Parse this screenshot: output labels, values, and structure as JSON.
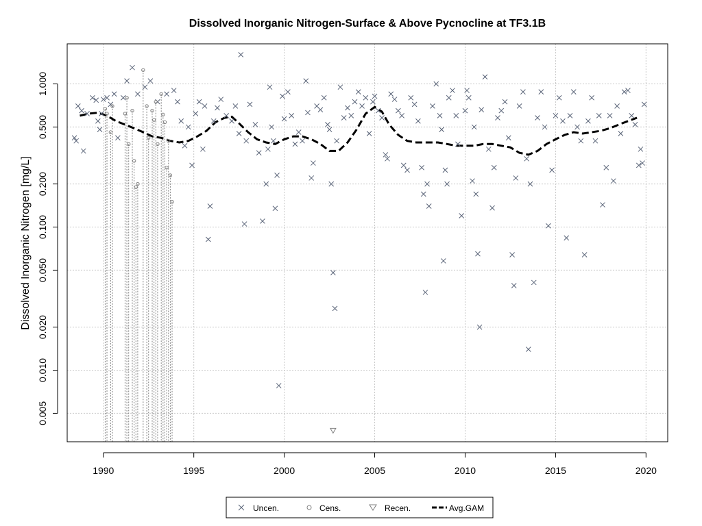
{
  "chart_data": {
    "type": "scatter",
    "title": "Dissolved Inorganic Nitrogen-Surface & Above Pycnocline at TF3.1B",
    "xlabel": "",
    "ylabel": "Dissolved Inorganic Nitrogen [mg/L]",
    "xlim": [
      1988,
      2021.2
    ],
    "ylim_log10": [
      -2.5,
      0.28
    ],
    "xticks": [
      1990,
      1995,
      2000,
      2005,
      2010,
      2015,
      2020
    ],
    "yticks": [
      0.005,
      0.01,
      0.02,
      0.05,
      0.1,
      0.2,
      0.5,
      1.0
    ],
    "ytick_labels": [
      "0.005",
      "0.010",
      "0.020",
      "0.050",
      "0.100",
      "0.200",
      "0.500",
      "1.000"
    ],
    "grid": true,
    "legend": {
      "position": "bottom-center",
      "entries": [
        {
          "label": "Uncen.",
          "symbol": "x"
        },
        {
          "label": "Cens.",
          "symbol": "o"
        },
        {
          "label": "Recen.",
          "symbol": "triangle-down"
        },
        {
          "label": "Avg.GAM",
          "symbol": "dashed-line"
        }
      ]
    },
    "series": [
      {
        "name": "Uncen.",
        "marker": "x",
        "points": [
          [
            1988.4,
            0.42
          ],
          [
            1988.5,
            0.4
          ],
          [
            1988.6,
            0.7
          ],
          [
            1988.8,
            0.65
          ],
          [
            1988.9,
            0.34
          ],
          [
            1989.1,
            0.62
          ],
          [
            1989.4,
            0.8
          ],
          [
            1989.6,
            0.77
          ],
          [
            1989.7,
            0.55
          ],
          [
            1989.8,
            0.48
          ],
          [
            1989.9,
            0.62
          ],
          [
            1990.0,
            0.78
          ],
          [
            1990.2,
            0.8
          ],
          [
            1990.4,
            0.72
          ],
          [
            1990.6,
            0.85
          ],
          [
            1990.8,
            0.42
          ],
          [
            1991.1,
            0.8
          ],
          [
            1991.3,
            1.05
          ],
          [
            1991.6,
            1.3
          ],
          [
            1991.9,
            0.85
          ],
          [
            1992.3,
            0.95
          ],
          [
            1992.6,
            1.05
          ],
          [
            1993.0,
            0.75
          ],
          [
            1993.5,
            0.85
          ],
          [
            1993.9,
            0.9
          ],
          [
            1994.1,
            0.75
          ],
          [
            1994.3,
            0.55
          ],
          [
            1994.5,
            0.37
          ],
          [
            1994.7,
            0.5
          ],
          [
            1994.9,
            0.27
          ],
          [
            1995.1,
            0.62
          ],
          [
            1995.3,
            0.75
          ],
          [
            1995.5,
            0.35
          ],
          [
            1995.6,
            0.7
          ],
          [
            1995.8,
            0.082
          ],
          [
            1995.9,
            0.14
          ],
          [
            1996.1,
            0.55
          ],
          [
            1996.3,
            0.68
          ],
          [
            1996.5,
            0.78
          ],
          [
            1996.8,
            0.6
          ],
          [
            1997.1,
            0.55
          ],
          [
            1997.3,
            0.7
          ],
          [
            1997.5,
            0.45
          ],
          [
            1997.6,
            1.6
          ],
          [
            1997.8,
            0.105
          ],
          [
            1997.9,
            0.4
          ],
          [
            1998.1,
            0.72
          ],
          [
            1998.4,
            0.52
          ],
          [
            1998.6,
            0.33
          ],
          [
            1998.8,
            0.11
          ],
          [
            1999.0,
            0.2
          ],
          [
            1999.1,
            0.35
          ],
          [
            1999.2,
            0.95
          ],
          [
            1999.3,
            0.5
          ],
          [
            1999.4,
            0.4
          ],
          [
            1999.5,
            0.135
          ],
          [
            1999.6,
            0.23
          ],
          [
            1999.7,
            0.0078
          ],
          [
            1999.9,
            0.82
          ],
          [
            2000.0,
            0.57
          ],
          [
            2000.2,
            0.88
          ],
          [
            2000.4,
            0.6
          ],
          [
            2000.6,
            0.38
          ],
          [
            2000.8,
            0.46
          ],
          [
            2001.0,
            0.4
          ],
          [
            2001.2,
            1.05
          ],
          [
            2001.3,
            0.63
          ],
          [
            2001.5,
            0.22
          ],
          [
            2001.6,
            0.28
          ],
          [
            2001.8,
            0.7
          ],
          [
            2002.0,
            0.66
          ],
          [
            2002.2,
            0.8
          ],
          [
            2002.4,
            0.52
          ],
          [
            2002.5,
            0.48
          ],
          [
            2002.6,
            0.2
          ],
          [
            2002.7,
            0.048
          ],
          [
            2002.8,
            0.027
          ],
          [
            2002.9,
            0.4
          ],
          [
            2003.1,
            0.95
          ],
          [
            2003.3,
            0.58
          ],
          [
            2003.5,
            0.68
          ],
          [
            2003.7,
            0.6
          ],
          [
            2003.9,
            0.75
          ],
          [
            2004.1,
            0.88
          ],
          [
            2004.3,
            0.7
          ],
          [
            2004.5,
            0.8
          ],
          [
            2004.7,
            0.45
          ],
          [
            2004.9,
            0.75
          ],
          [
            2005.0,
            0.82
          ],
          [
            2005.2,
            0.65
          ],
          [
            2005.4,
            0.58
          ],
          [
            2005.6,
            0.32
          ],
          [
            2005.7,
            0.3
          ],
          [
            2005.9,
            0.85
          ],
          [
            2006.1,
            0.78
          ],
          [
            2006.3,
            0.65
          ],
          [
            2006.5,
            0.6
          ],
          [
            2006.6,
            0.27
          ],
          [
            2006.8,
            0.25
          ],
          [
            2007.0,
            0.8
          ],
          [
            2007.2,
            0.72
          ],
          [
            2007.4,
            0.55
          ],
          [
            2007.6,
            0.26
          ],
          [
            2007.7,
            0.17
          ],
          [
            2007.8,
            0.035
          ],
          [
            2007.9,
            0.2
          ],
          [
            2008.0,
            0.14
          ],
          [
            2008.2,
            0.7
          ],
          [
            2008.4,
            1.0
          ],
          [
            2008.6,
            0.6
          ],
          [
            2008.7,
            0.48
          ],
          [
            2008.8,
            0.058
          ],
          [
            2008.9,
            0.25
          ],
          [
            2009.0,
            0.2
          ],
          [
            2009.1,
            0.8
          ],
          [
            2009.3,
            0.9
          ],
          [
            2009.5,
            0.6
          ],
          [
            2009.6,
            0.38
          ],
          [
            2009.8,
            0.12
          ],
          [
            2010.0,
            0.65
          ],
          [
            2010.1,
            0.9
          ],
          [
            2010.2,
            0.8
          ],
          [
            2010.4,
            0.21
          ],
          [
            2010.5,
            0.5
          ],
          [
            2010.6,
            0.17
          ],
          [
            2010.7,
            0.065
          ],
          [
            2010.8,
            0.02
          ],
          [
            2010.9,
            0.66
          ],
          [
            2011.1,
            1.12
          ],
          [
            2011.3,
            0.35
          ],
          [
            2011.5,
            0.136
          ],
          [
            2011.6,
            0.26
          ],
          [
            2011.8,
            0.58
          ],
          [
            2012.0,
            0.65
          ],
          [
            2012.2,
            0.75
          ],
          [
            2012.4,
            0.42
          ],
          [
            2012.6,
            0.064
          ],
          [
            2012.7,
            0.039
          ],
          [
            2012.8,
            0.22
          ],
          [
            2013.0,
            0.7
          ],
          [
            2013.2,
            0.88
          ],
          [
            2013.4,
            0.3
          ],
          [
            2013.5,
            0.014
          ],
          [
            2013.6,
            0.2
          ],
          [
            2013.8,
            0.041
          ],
          [
            2014.0,
            0.58
          ],
          [
            2014.2,
            0.88
          ],
          [
            2014.4,
            0.5
          ],
          [
            2014.6,
            0.102
          ],
          [
            2014.8,
            0.25
          ],
          [
            2015.0,
            0.6
          ],
          [
            2015.2,
            0.8
          ],
          [
            2015.4,
            0.55
          ],
          [
            2015.6,
            0.084
          ],
          [
            2015.8,
            0.6
          ],
          [
            2016.0,
            0.88
          ],
          [
            2016.2,
            0.5
          ],
          [
            2016.4,
            0.4
          ],
          [
            2016.6,
            0.064
          ],
          [
            2016.8,
            0.55
          ],
          [
            2017.0,
            0.8
          ],
          [
            2017.2,
            0.4
          ],
          [
            2017.4,
            0.6
          ],
          [
            2017.6,
            0.143
          ],
          [
            2017.8,
            0.26
          ],
          [
            2018.0,
            0.6
          ],
          [
            2018.2,
            0.21
          ],
          [
            2018.4,
            0.7
          ],
          [
            2018.6,
            0.45
          ],
          [
            2018.8,
            0.88
          ],
          [
            2019.0,
            0.9
          ],
          [
            2019.2,
            0.6
          ],
          [
            2019.4,
            0.52
          ],
          [
            2019.6,
            0.27
          ],
          [
            2019.7,
            0.35
          ],
          [
            2019.8,
            0.28
          ],
          [
            2019.9,
            0.72
          ]
        ]
      },
      {
        "name": "Cens.",
        "marker": "o",
        "points": [
          [
            1990.1,
            0.67
          ],
          [
            1990.2,
            0.62
          ],
          [
            1990.4,
            0.46
          ],
          [
            1990.5,
            0.7
          ],
          [
            1991.2,
            0.62
          ],
          [
            1991.3,
            0.8
          ],
          [
            1991.4,
            0.38
          ],
          [
            1991.6,
            0.65
          ],
          [
            1991.7,
            0.29
          ],
          [
            1991.8,
            0.19
          ],
          [
            1991.9,
            0.2
          ],
          [
            1992.2,
            1.25
          ],
          [
            1992.4,
            0.7
          ],
          [
            1992.5,
            0.42
          ],
          [
            1992.7,
            0.65
          ],
          [
            1992.8,
            0.56
          ],
          [
            1992.9,
            0.75
          ],
          [
            1993.0,
            0.38
          ],
          [
            1993.2,
            0.85
          ],
          [
            1993.3,
            0.61
          ],
          [
            1993.4,
            0.54
          ],
          [
            1993.5,
            0.26
          ],
          [
            1993.6,
            0.4
          ],
          [
            1993.7,
            0.23
          ],
          [
            1993.8,
            0.15
          ]
        ]
      },
      {
        "name": "Recen.",
        "marker": "triangle-down",
        "points": [
          [
            2002.7,
            0.0038
          ]
        ]
      },
      {
        "name": "Avg.GAM",
        "marker": "dashed-line",
        "points": [
          [
            1988.7,
            0.6
          ],
          [
            1989.2,
            0.62
          ],
          [
            1989.7,
            0.63
          ],
          [
            1990.2,
            0.6
          ],
          [
            1990.7,
            0.55
          ],
          [
            1991.2,
            0.52
          ],
          [
            1991.7,
            0.49
          ],
          [
            1992.2,
            0.46
          ],
          [
            1992.7,
            0.43
          ],
          [
            1993.2,
            0.42
          ],
          [
            1993.7,
            0.4
          ],
          [
            1994.2,
            0.39
          ],
          [
            1994.7,
            0.4
          ],
          [
            1995.2,
            0.43
          ],
          [
            1995.7,
            0.47
          ],
          [
            1996.2,
            0.54
          ],
          [
            1996.7,
            0.58
          ],
          [
            1997.1,
            0.59
          ],
          [
            1997.5,
            0.53
          ],
          [
            1998.0,
            0.46
          ],
          [
            1998.5,
            0.41
          ],
          [
            1999.0,
            0.39
          ],
          [
            1999.5,
            0.38
          ],
          [
            2000.0,
            0.41
          ],
          [
            2000.5,
            0.43
          ],
          [
            2001.0,
            0.43
          ],
          [
            2001.5,
            0.41
          ],
          [
            2002.0,
            0.38
          ],
          [
            2002.5,
            0.34
          ],
          [
            2003.0,
            0.34
          ],
          [
            2003.5,
            0.39
          ],
          [
            2004.0,
            0.48
          ],
          [
            2004.5,
            0.62
          ],
          [
            2005.0,
            0.69
          ],
          [
            2005.4,
            0.64
          ],
          [
            2005.8,
            0.52
          ],
          [
            2006.3,
            0.44
          ],
          [
            2006.8,
            0.4
          ],
          [
            2007.3,
            0.39
          ],
          [
            2008.0,
            0.39
          ],
          [
            2008.5,
            0.39
          ],
          [
            2009.0,
            0.38
          ],
          [
            2009.5,
            0.37
          ],
          [
            2010.0,
            0.37
          ],
          [
            2010.5,
            0.37
          ],
          [
            2011.0,
            0.38
          ],
          [
            2011.5,
            0.38
          ],
          [
            2012.0,
            0.37
          ],
          [
            2012.5,
            0.36
          ],
          [
            2013.0,
            0.33
          ],
          [
            2013.5,
            0.32
          ],
          [
            2014.0,
            0.34
          ],
          [
            2014.5,
            0.38
          ],
          [
            2015.0,
            0.41
          ],
          [
            2015.5,
            0.44
          ],
          [
            2016.0,
            0.46
          ],
          [
            2016.5,
            0.45
          ],
          [
            2017.0,
            0.46
          ],
          [
            2017.5,
            0.47
          ],
          [
            2018.0,
            0.49
          ],
          [
            2018.5,
            0.52
          ],
          [
            2019.0,
            0.55
          ],
          [
            2019.5,
            0.58
          ]
        ]
      }
    ]
  }
}
